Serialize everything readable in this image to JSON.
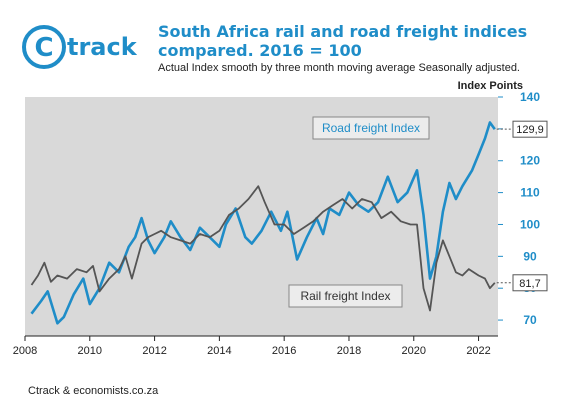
{
  "brand": {
    "logo_text": "track",
    "logo_mark": "C"
  },
  "chart_data": {
    "type": "line",
    "title": "South Africa rail and road freight indices compared. 2016 = 100",
    "subtitle": "Actual Index smooth by three month moving average Seasonally adjusted.",
    "ylabel": "Index Points",
    "xlabel": "",
    "xlim": [
      2008,
      2022.6
    ],
    "ylim": [
      65,
      140
    ],
    "x_ticks": [
      "2008",
      "2010",
      "2012",
      "2014",
      "2016",
      "2018",
      "2020",
      "2022"
    ],
    "y_ticks": [
      "70",
      "80",
      "90",
      "100",
      "110",
      "120",
      "130",
      "140"
    ],
    "grid": false,
    "background": "#d9d9d9",
    "series": [
      {
        "name": "Road freight Index",
        "color": "#1f8dc8",
        "end_value_label": "129,9",
        "x": [
          2008.2,
          2008.5,
          2008.7,
          2009.0,
          2009.2,
          2009.5,
          2009.8,
          2010.0,
          2010.3,
          2010.6,
          2010.9,
          2011.2,
          2011.4,
          2011.6,
          2011.8,
          2012.0,
          2012.3,
          2012.5,
          2012.8,
          2013.1,
          2013.4,
          2013.7,
          2014.0,
          2014.2,
          2014.5,
          2014.8,
          2015.0,
          2015.3,
          2015.6,
          2015.9,
          2016.1,
          2016.4,
          2016.7,
          2017.0,
          2017.2,
          2017.4,
          2017.7,
          2018.0,
          2018.3,
          2018.6,
          2018.9,
          2019.2,
          2019.5,
          2019.8,
          2020.1,
          2020.3,
          2020.5,
          2020.7,
          2020.9,
          2021.1,
          2021.3,
          2021.5,
          2021.8,
          2022.0,
          2022.2,
          2022.35,
          2022.5
        ],
        "values": [
          72,
          76,
          79,
          69,
          71,
          78,
          83,
          75,
          80,
          88,
          85,
          93,
          96,
          102,
          95,
          91,
          96,
          101,
          96,
          92,
          99,
          96,
          93,
          100,
          105,
          96,
          94,
          98,
          104,
          98,
          104,
          89,
          96,
          102,
          97,
          105,
          103,
          110,
          106,
          104,
          107,
          115,
          107,
          110,
          117,
          103,
          83,
          90,
          104,
          113,
          108,
          112,
          117,
          122,
          127,
          132,
          129.9
        ]
      },
      {
        "name": "Rail freight Index",
        "color": "#555555",
        "end_value_label": "81,7",
        "x": [
          2008.2,
          2008.4,
          2008.6,
          2008.8,
          2009.0,
          2009.3,
          2009.6,
          2009.9,
          2010.1,
          2010.3,
          2010.6,
          2010.9,
          2011.1,
          2011.3,
          2011.6,
          2011.8,
          2012.0,
          2012.2,
          2012.5,
          2012.8,
          2013.1,
          2013.4,
          2013.7,
          2014.0,
          2014.3,
          2014.6,
          2014.9,
          2015.2,
          2015.4,
          2015.7,
          2016.0,
          2016.3,
          2016.6,
          2016.9,
          2017.2,
          2017.5,
          2017.8,
          2018.1,
          2018.4,
          2018.7,
          2019.0,
          2019.3,
          2019.6,
          2019.9,
          2020.1,
          2020.3,
          2020.5,
          2020.7,
          2020.9,
          2021.1,
          2021.3,
          2021.5,
          2021.7,
          2022.0,
          2022.2,
          2022.35,
          2022.5
        ],
        "values": [
          81,
          84,
          88,
          82,
          84,
          83,
          86,
          85,
          87,
          79,
          83,
          86,
          90,
          83,
          94,
          96,
          97,
          98,
          96,
          95,
          94,
          97,
          96,
          98,
          103,
          105,
          108,
          112,
          107,
          100,
          100,
          97,
          99,
          101,
          104,
          106,
          108,
          105,
          108,
          107,
          102,
          104,
          101,
          100,
          100,
          80,
          73,
          88,
          95,
          90,
          85,
          84,
          86,
          84,
          83,
          80,
          81.7
        ]
      }
    ]
  },
  "footer": {
    "source": "Ctrack & economists.co.za"
  }
}
